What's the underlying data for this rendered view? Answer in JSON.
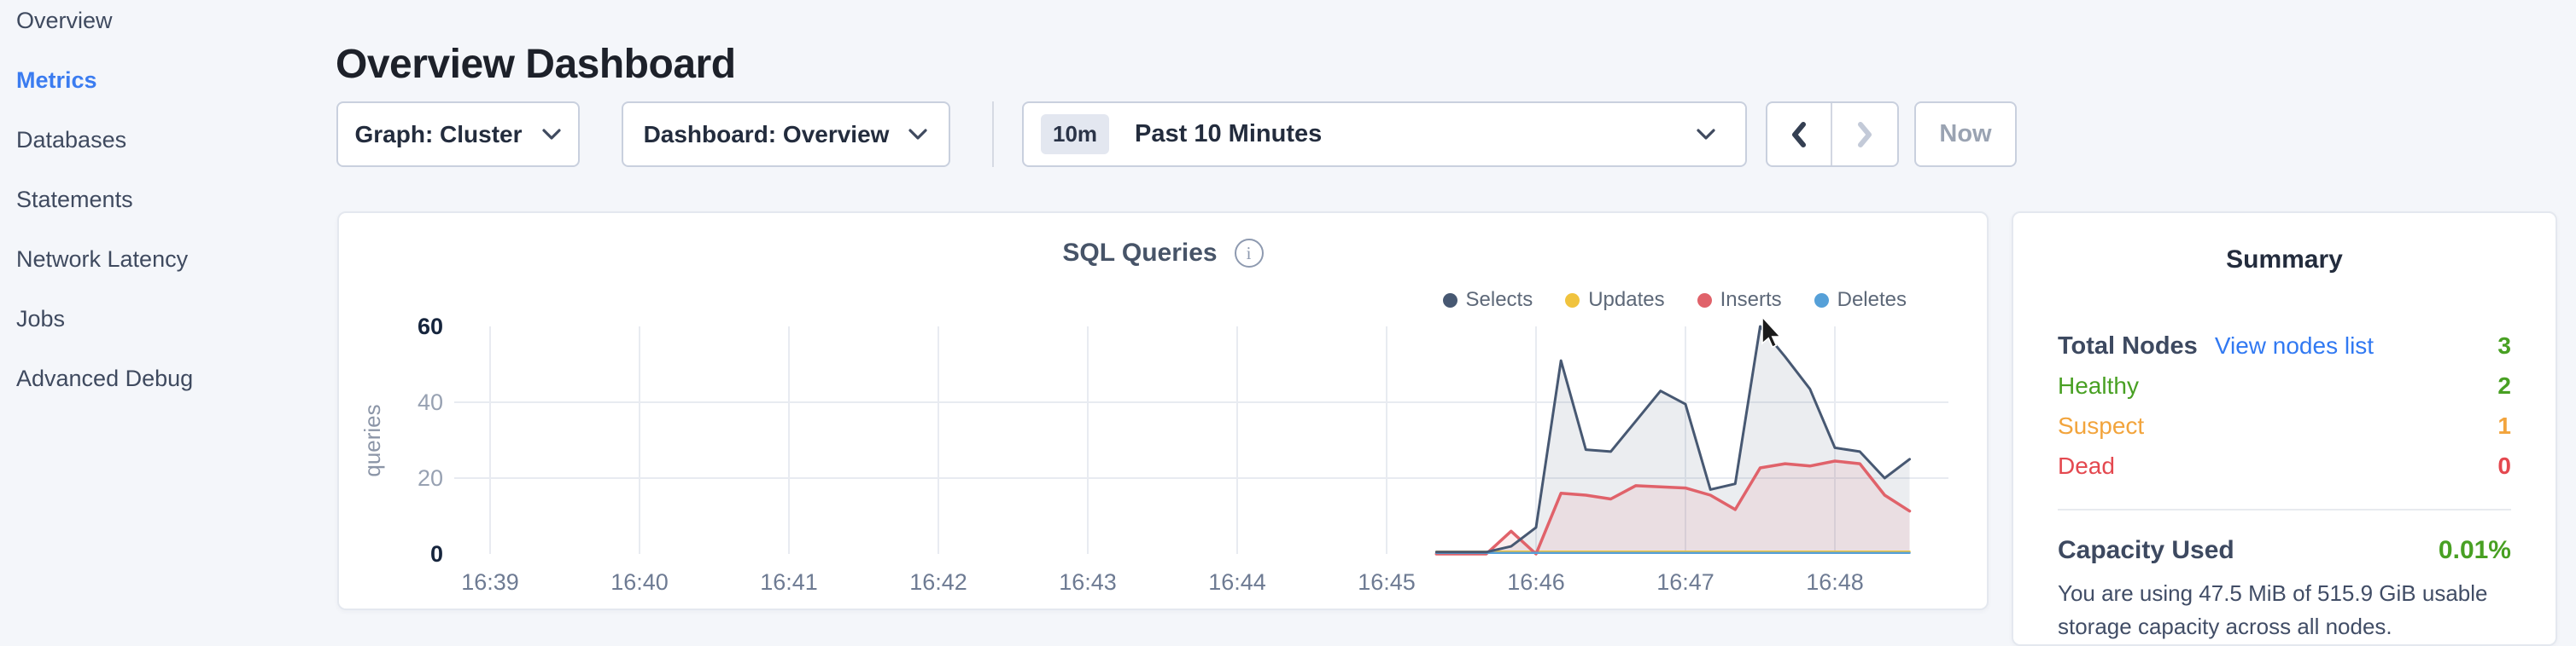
{
  "sidebar": {
    "items": [
      {
        "label": "Overview",
        "active": false
      },
      {
        "label": "Metrics",
        "active": true
      },
      {
        "label": "Databases",
        "active": false
      },
      {
        "label": "Statements",
        "active": false
      },
      {
        "label": "Network Latency",
        "active": false
      },
      {
        "label": "Jobs",
        "active": false
      },
      {
        "label": "Advanced Debug",
        "active": false
      }
    ]
  },
  "header": {
    "title": "Overview Dashboard"
  },
  "controls": {
    "graph_dropdown": "Graph: Cluster",
    "dashboard_dropdown": "Dashboard: Overview",
    "time_badge": "10m",
    "time_range": "Past 10 Minutes",
    "now_label": "Now"
  },
  "chart_data": {
    "type": "area",
    "title": "SQL Queries",
    "ylabel": "queries",
    "ylim": [
      0,
      60
    ],
    "y_ticks": [
      0,
      20,
      40,
      60
    ],
    "x_ticks": [
      "16:39",
      "16:40",
      "16:41",
      "16:42",
      "16:43",
      "16:44",
      "16:45",
      "16:46",
      "16:47",
      "16:48"
    ],
    "grid": true,
    "legend_position": "top-right",
    "series_start": "16:45:20",
    "interval_seconds": 10,
    "series": [
      {
        "name": "Selects",
        "color": "#475872",
        "fill": "rgba(73,89,115,0.11)",
        "values": [
          0.5,
          0.5,
          0.5,
          2,
          7,
          51,
          27.5,
          27,
          35,
          43,
          39.5,
          17,
          18.5,
          60,
          52,
          43.5,
          28,
          27,
          20,
          25
        ]
      },
      {
        "name": "Updates",
        "color": "#f0c33e",
        "fill": "none",
        "values": [
          0.6,
          0.6,
          0.6,
          0.6,
          0.6,
          0.6,
          0.6,
          0.6,
          0.6,
          0.6,
          0.6,
          0.6,
          0.6,
          0.6,
          0.6,
          0.6,
          0.6,
          0.6,
          0.6,
          0.6
        ]
      },
      {
        "name": "Inserts",
        "color": "#e0626a",
        "fill": "rgba(226,98,106,0.10)",
        "values": [
          0,
          0,
          0,
          6,
          0,
          16,
          15.5,
          14.5,
          18,
          17.7,
          17.4,
          15.5,
          11.7,
          22.7,
          23.8,
          23.2,
          24.5,
          23.8,
          15.5,
          11.3
        ]
      },
      {
        "name": "Deletes",
        "color": "#56a0d8",
        "fill": "none",
        "values": [
          0.3,
          0.3,
          0.3,
          0.3,
          0.3,
          0.3,
          0.3,
          0.3,
          0.3,
          0.3,
          0.3,
          0.3,
          0.3,
          0.3,
          0.3,
          0.3,
          0.3,
          0.3,
          0.3,
          0.3
        ]
      }
    ]
  },
  "summary": {
    "title": "Summary",
    "total_nodes_label": "Total Nodes",
    "view_nodes_link": "View nodes list",
    "total_nodes_value": "3",
    "healthy_label": "Healthy",
    "healthy_value": "2",
    "suspect_label": "Suspect",
    "suspect_value": "1",
    "dead_label": "Dead",
    "dead_value": "0",
    "capacity_label": "Capacity Used",
    "capacity_value": "0.01%",
    "capacity_text": "You are using 47.5 MiB of 515.9 GiB usable storage capacity across all nodes.",
    "colors": {
      "green": "#48a023",
      "orange": "#f2a43c",
      "red": "#e4484f",
      "link_blue": "#3179f2"
    }
  }
}
